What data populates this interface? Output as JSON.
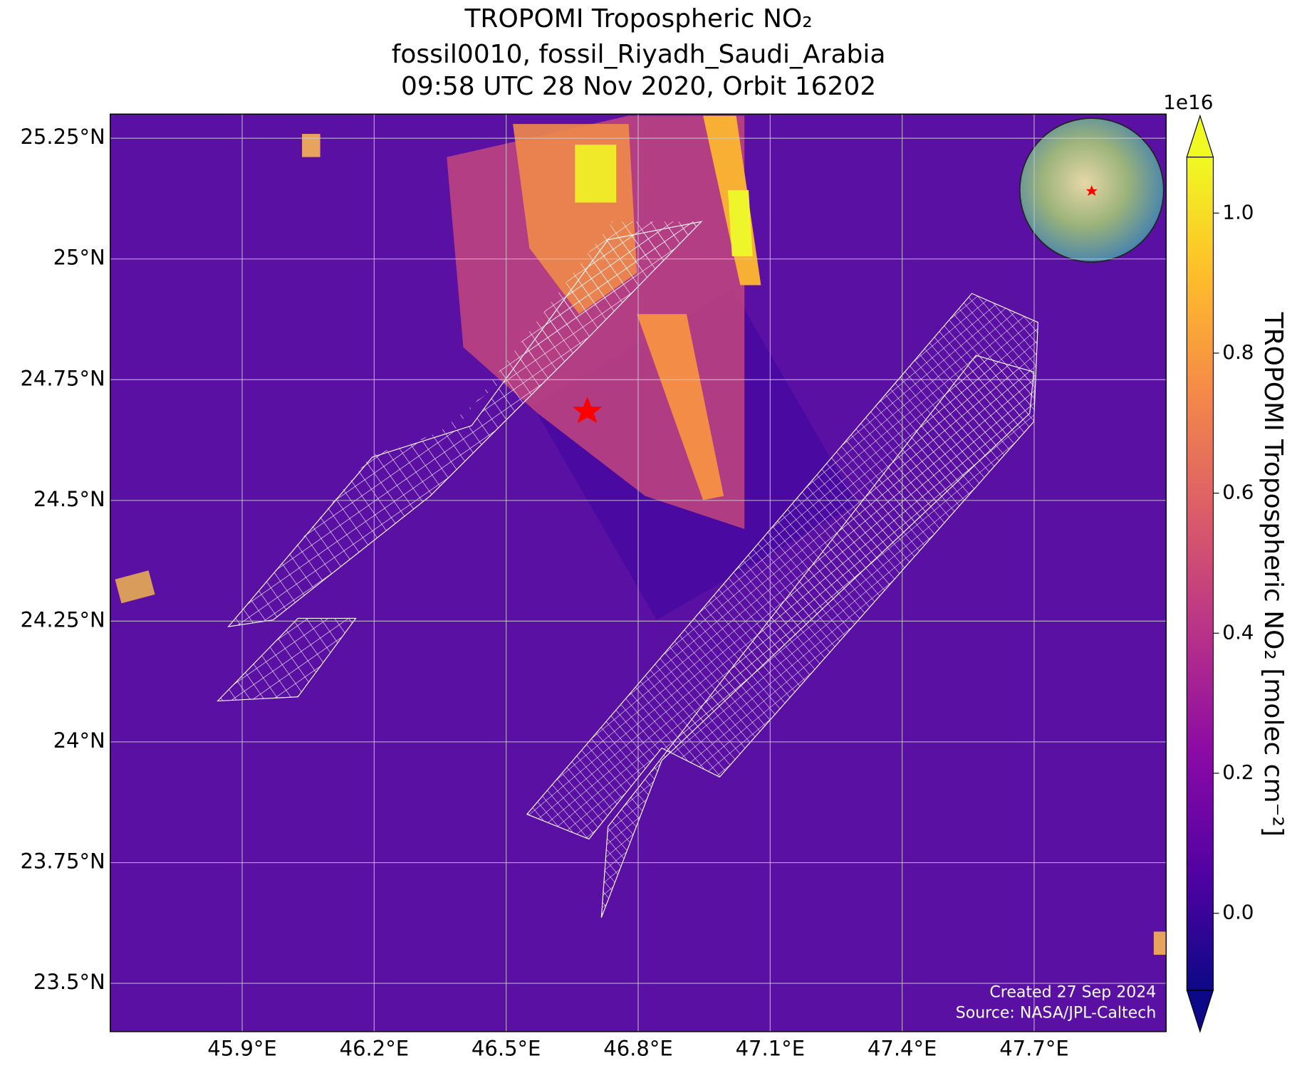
{
  "chart_data": {
    "type": "map",
    "title": "TROPOMI Tropospheric NO₂",
    "subtitle": [
      "fossil0010, fossil_Riyadh_Saudi_Arabia",
      "09:58 UTC 28 Nov 2020, Orbit 16202"
    ],
    "xlim": [
      45.6,
      48.0
    ],
    "ylim": [
      23.4,
      25.3
    ],
    "xticks": [
      {
        "value": 45.9,
        "label": "45.9°E"
      },
      {
        "value": 46.2,
        "label": "46.2°E"
      },
      {
        "value": 46.5,
        "label": "46.5°E"
      },
      {
        "value": 46.8,
        "label": "46.8°E"
      },
      {
        "value": 47.1,
        "label": "47.1°E"
      },
      {
        "value": 47.4,
        "label": "47.4°E"
      },
      {
        "value": 47.7,
        "label": "47.7°E"
      }
    ],
    "yticks": [
      {
        "value": 23.5,
        "label": "23.5°N"
      },
      {
        "value": 23.75,
        "label": "23.75°N"
      },
      {
        "value": 24,
        "label": "24°N"
      },
      {
        "value": 24.25,
        "label": "24.25°N"
      },
      {
        "value": 24.5,
        "label": "24.5°N"
      },
      {
        "value": 24.75,
        "label": "24.75°N"
      },
      {
        "value": 25,
        "label": "25°N"
      },
      {
        "value": 25.25,
        "label": "25.25°N"
      }
    ],
    "grid": true,
    "colorbar": {
      "label": "TROPOMI Tropospheric NO₂ [molec cm⁻²]",
      "exponent": "1e16",
      "lim": [
        -0.11,
        1.08
      ],
      "ticks": [
        {
          "value": 0,
          "label": "0.0"
        },
        0.2,
        0.4,
        0.6,
        0.8,
        {
          "value": 1,
          "label": "1.0"
        }
      ],
      "colors": [
        "#0d0887",
        "#5302a3",
        "#8b0aa5",
        "#b83289",
        "#db5c68",
        "#f48849",
        "#febd2a",
        "#f0f921"
      ]
    },
    "annotations": [
      "Created 27 Sep 2024",
      "Source: NASA/JPL-Caltech"
    ]
  }
}
